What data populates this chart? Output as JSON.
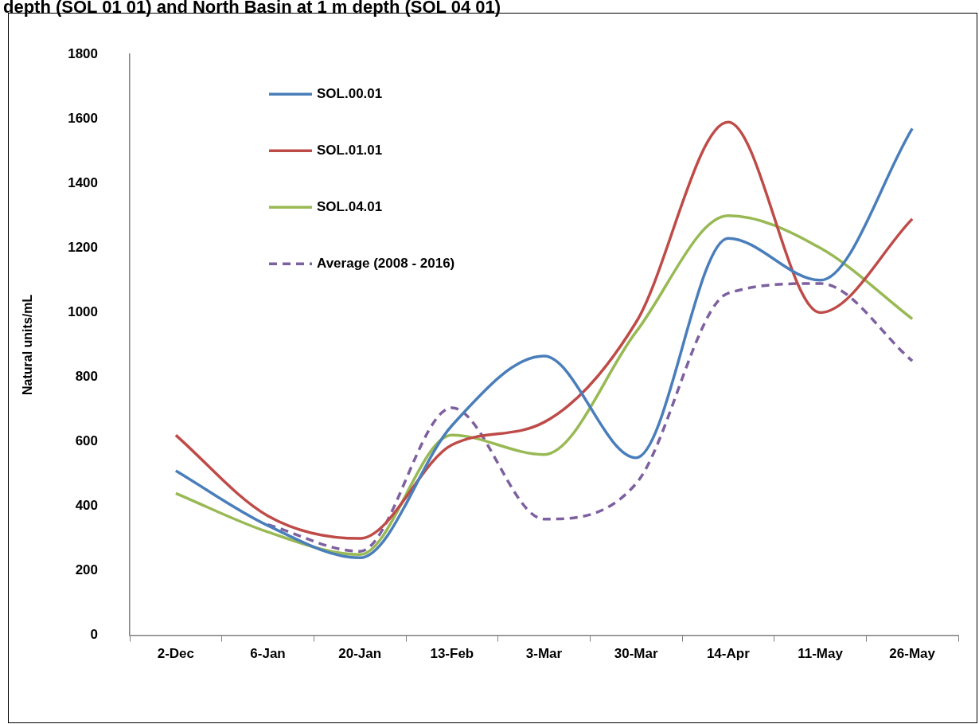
{
  "chart_data": {
    "type": "line",
    "title": "depth (SOL 01 01) and North Basin at 1 m depth (SOL 04 01)",
    "ylabel": "Natural units/mL",
    "categories": [
      "2-Dec",
      "6-Jan",
      "20-Jan",
      "13-Feb",
      "3-Mar",
      "30-Mar",
      "14-Apr",
      "11-May",
      "26-May"
    ],
    "series": [
      {
        "name": "SOL.00.01",
        "color": "#4a7ebb",
        "values": [
          510,
          340,
          240,
          650,
          865,
          550,
          1230,
          1100,
          1570
        ]
      },
      {
        "name": "SOL.01.01",
        "color": "#be4b48",
        "values": [
          620,
          370,
          300,
          590,
          660,
          970,
          1590,
          1000,
          1290
        ]
      },
      {
        "name": "SOL.04.01",
        "color": "#98b954",
        "values": [
          440,
          320,
          250,
          620,
          560,
          940,
          1300,
          1200,
          980
        ]
      },
      {
        "name": "Average (2008 - 2016)",
        "color": "#7d60a0",
        "line_style": "dashed",
        "values": [
          null,
          343,
          260,
          705,
          360,
          470,
          1060,
          1090,
          850
        ]
      }
    ],
    "ylim": [
      0,
      1800
    ],
    "yticks": [
      0,
      200,
      400,
      600,
      800,
      1000,
      1200,
      1400,
      1600,
      1800
    ],
    "grid": false,
    "legend": "top left",
    "marker": "none"
  }
}
